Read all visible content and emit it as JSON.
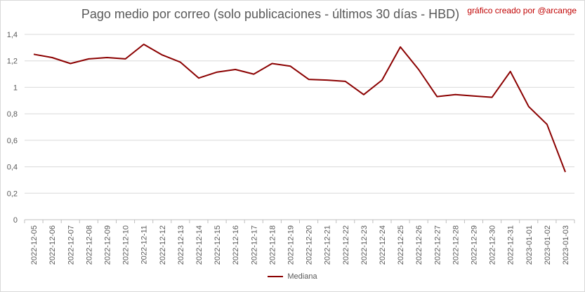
{
  "chart_data": {
    "type": "line",
    "title": "Pago medio por correo (solo publicaciones - últimos 30 días - HBD)",
    "credit": "gráfico creado por @arcange",
    "ylim": [
      0,
      1.4
    ],
    "yticks": [
      "0",
      "0,2",
      "0,4",
      "0,6",
      "0,8",
      "1",
      "1,2",
      "1,4"
    ],
    "grid": "horizontal",
    "legend_position": "bottom",
    "color": "#8b0000",
    "categories": [
      "2022-12-05",
      "2022-12-06",
      "2022-12-07",
      "2022-12-08",
      "2022-12-09",
      "2022-12-10",
      "2022-12-11",
      "2022-12-12",
      "2022-12-13",
      "2022-12-14",
      "2022-12-15",
      "2022-12-16",
      "2022-12-17",
      "2022-12-18",
      "2022-12-19",
      "2022-12-20",
      "2022-12-21",
      "2022-12-22",
      "2022-12-23",
      "2022-12-24",
      "2022-12-25",
      "2022-12-26",
      "2022-12-27",
      "2022-12-28",
      "2022-12-29",
      "2022-12-30",
      "2022-12-31",
      "2023-01-01",
      "2023-01-02",
      "2023-01-03"
    ],
    "series": [
      {
        "name": "Mediana",
        "values": [
          1.25,
          1.225,
          1.18,
          1.215,
          1.225,
          1.215,
          1.325,
          1.245,
          1.19,
          1.07,
          1.115,
          1.135,
          1.1,
          1.18,
          1.16,
          1.06,
          1.055,
          1.045,
          0.945,
          1.055,
          1.305,
          1.135,
          0.93,
          0.945,
          0.935,
          0.925,
          1.12,
          0.855,
          0.72,
          0.36
        ]
      }
    ]
  }
}
